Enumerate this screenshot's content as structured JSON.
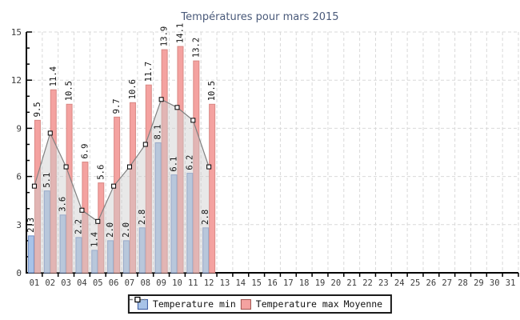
{
  "chart": {
    "title": "Températures pour mars 2015"
  },
  "legend": {
    "min_label": "Temperature min",
    "max_label": "Temperature max",
    "moyenne_label": "Moyenne"
  },
  "colors": {
    "title_text": "#4a5a7a",
    "axis": "#000000",
    "tick_text": "#3c3c3c",
    "grid": "#d9d9d9",
    "bar_min_fill": "#a8c3e8",
    "bar_min_stroke": "#6f8ec6",
    "bar_max_fill": "#f4a2a0",
    "bar_max_stroke": "#d98884",
    "legend_min_border": "#3a5a9f",
    "legend_max_border": "#a05550",
    "moyenne_line": "#808080",
    "moyenne_area": "rgba(205,205,205,0.45)",
    "marker_fill": "#ffffff",
    "marker_stroke": "#000000",
    "value_label": "#111111"
  },
  "chart_data": {
    "type": "bar",
    "title": "Températures pour mars 2015",
    "xlabel": "",
    "ylabel": "",
    "ylim": [
      0,
      15
    ],
    "yticks": [
      0,
      3,
      6,
      9,
      12,
      15
    ],
    "minor_ytick_step": 1,
    "grid": "dashed",
    "legend_position": "bottom-center",
    "categories": [
      "01",
      "02",
      "03",
      "04",
      "05",
      "06",
      "07",
      "08",
      "09",
      "10",
      "11",
      "12",
      "13",
      "14",
      "15",
      "16",
      "17",
      "18",
      "19",
      "20",
      "21",
      "22",
      "23",
      "24",
      "25",
      "26",
      "27",
      "28",
      "29",
      "30",
      "31"
    ],
    "note_days_with_data": 12,
    "series": [
      {
        "name": "Temperature min",
        "type": "bar",
        "values": [
          2.3,
          5.1,
          3.6,
          2.2,
          1.4,
          2.0,
          2.0,
          2.8,
          8.1,
          6.1,
          6.2,
          2.8
        ]
      },
      {
        "name": "Temperature max",
        "type": "bar",
        "values": [
          9.5,
          11.4,
          10.5,
          6.9,
          5.6,
          9.7,
          10.6,
          11.7,
          13.9,
          14.1,
          13.2,
          10.5
        ]
      },
      {
        "name": "Moyenne",
        "type": "line-area",
        "marker": "square",
        "values": [
          5.4,
          8.7,
          6.6,
          3.9,
          3.2,
          5.4,
          6.6,
          8.0,
          10.8,
          10.3,
          9.5,
          6.6
        ]
      }
    ]
  }
}
